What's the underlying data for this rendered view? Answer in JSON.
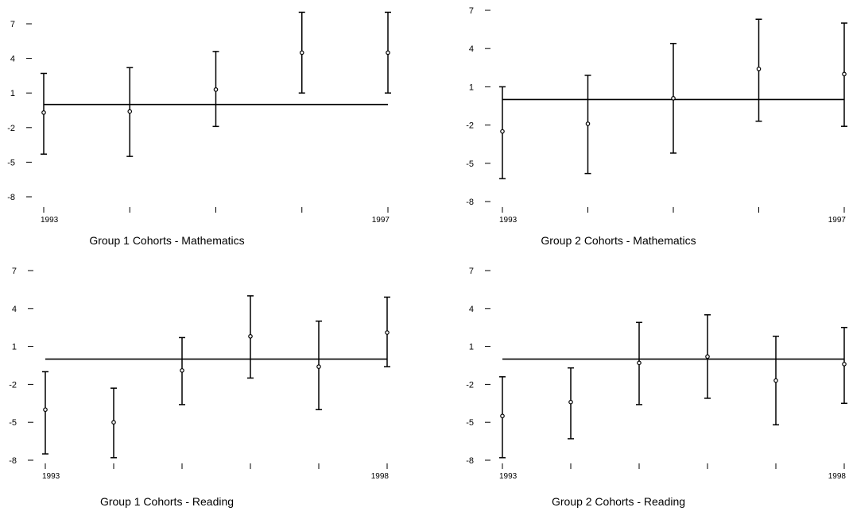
{
  "chart_data": [
    {
      "type": "scatter",
      "title": "Group 1 Cohorts - Mathematics",
      "x_tick_labels": [
        "1993",
        "",
        "",
        "",
        "1997"
      ],
      "ylim": [
        -8,
        7
      ],
      "yticks": [
        7,
        4,
        1,
        -2,
        -5,
        -8
      ],
      "reference_line": 0,
      "points": [
        {
          "value": -0.7,
          "low": -4.3,
          "high": 2.7
        },
        {
          "value": -0.6,
          "low": -4.5,
          "high": 3.2
        },
        {
          "value": 1.3,
          "low": -1.9,
          "high": 4.6
        },
        {
          "value": 4.5,
          "low": 1.0,
          "high": 8.0
        },
        {
          "value": 4.5,
          "low": 1.0,
          "high": 8.0
        }
      ],
      "grid": false,
      "legend": "none"
    },
    {
      "type": "scatter",
      "title": "Group 2 Cohorts - Mathematics",
      "x_tick_labels": [
        "1993",
        "",
        "",
        "",
        "1997"
      ],
      "ylim": [
        -8,
        7
      ],
      "yticks": [
        7,
        4,
        1,
        -2,
        -5,
        -8
      ],
      "reference_line": 0,
      "points": [
        {
          "value": -2.5,
          "low": -6.2,
          "high": 1.0
        },
        {
          "value": -1.9,
          "low": -5.8,
          "high": 1.9
        },
        {
          "value": 0.1,
          "low": -4.2,
          "high": 4.4
        },
        {
          "value": 2.4,
          "low": -1.7,
          "high": 6.3
        },
        {
          "value": 2.0,
          "low": -2.1,
          "high": 6.0
        }
      ],
      "grid": false,
      "legend": "none"
    },
    {
      "type": "scatter",
      "title": "Group 1 Cohorts - Reading",
      "x_tick_labels": [
        "1993",
        "",
        "",
        "",
        "",
        "1998"
      ],
      "ylim": [
        -8,
        7
      ],
      "yticks": [
        7,
        4,
        1,
        -2,
        -5,
        -8
      ],
      "reference_line": 0,
      "points": [
        {
          "value": -4.0,
          "low": -7.5,
          "high": -1.0
        },
        {
          "value": -5.0,
          "low": -7.8,
          "high": -2.3
        },
        {
          "value": -0.9,
          "low": -3.6,
          "high": 1.7
        },
        {
          "value": 1.8,
          "low": -1.5,
          "high": 5.0
        },
        {
          "value": -0.6,
          "low": -4.0,
          "high": 3.0
        },
        {
          "value": 2.1,
          "low": -0.6,
          "high": 4.9
        }
      ],
      "grid": false,
      "legend": "none"
    },
    {
      "type": "scatter",
      "title": "Group 2 Cohorts - Reading",
      "x_tick_labels": [
        "1993",
        "",
        "",
        "",
        "",
        "1998"
      ],
      "ylim": [
        -8,
        7
      ],
      "yticks": [
        7,
        4,
        1,
        -2,
        -5,
        -8
      ],
      "reference_line": 0,
      "points": [
        {
          "value": -4.5,
          "low": -7.8,
          "high": -1.4
        },
        {
          "value": -3.4,
          "low": -6.3,
          "high": -0.7
        },
        {
          "value": -0.3,
          "low": -3.6,
          "high": 2.9
        },
        {
          "value": 0.2,
          "low": -3.1,
          "high": 3.5
        },
        {
          "value": -1.7,
          "low": -5.2,
          "high": 1.8
        },
        {
          "value": -0.4,
          "low": -3.5,
          "high": 2.5
        }
      ],
      "grid": false,
      "legend": "none"
    }
  ]
}
